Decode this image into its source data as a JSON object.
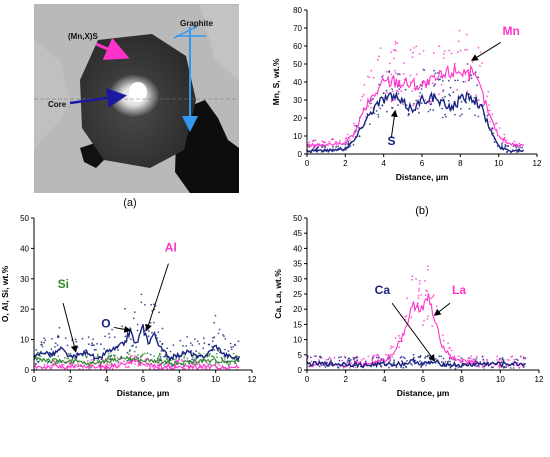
{
  "micrograph": {
    "panel_label": "(a)",
    "labels": {
      "graphite": "Graphite",
      "sulfide": "(Mn,X)S",
      "core": "Core"
    },
    "colors": {
      "sulfide_arrow": "#ff33cc",
      "core_arrow": "#1a1aa0",
      "line_arrow": "#3399ee"
    }
  },
  "chart_data": [
    {
      "id": "b",
      "type": "line",
      "panel_label": "(b)",
      "ylabel": "Mn, S, wt.%",
      "xlabel": "Distance, µm",
      "xlim": [
        0,
        12
      ],
      "ylim": [
        0,
        80
      ],
      "xticks": [
        0,
        2,
        4,
        6,
        8,
        10,
        12
      ],
      "yticks": [
        0,
        10,
        20,
        30,
        40,
        50,
        60,
        70,
        80
      ],
      "grid": false,
      "series": [
        {
          "name": "Mn",
          "color": "#ff33cc",
          "x": [
            0,
            1,
            2,
            2.5,
            3,
            3.5,
            4,
            4.5,
            5,
            5.5,
            6,
            6.5,
            7,
            7.5,
            8,
            8.5,
            9,
            9.5,
            10,
            10.5,
            11,
            11.3
          ],
          "y": [
            5,
            5,
            6,
            12,
            25,
            33,
            40,
            41,
            40,
            39,
            38,
            40,
            43,
            46,
            47,
            45,
            38,
            22,
            10,
            6,
            5,
            5
          ]
        },
        {
          "name": "S",
          "color": "#1a237e",
          "x": [
            0,
            1,
            2,
            2.5,
            3,
            3.5,
            4,
            4.5,
            5,
            5.5,
            6,
            6.5,
            7,
            7.5,
            8,
            8.5,
            9,
            9.5,
            10,
            10.5,
            11,
            11.3
          ],
          "y": [
            2,
            2,
            3,
            8,
            18,
            26,
            31,
            32,
            28,
            25,
            30,
            32,
            28,
            26,
            30,
            33,
            28,
            15,
            4,
            2,
            2,
            2
          ]
        }
      ],
      "annotations": [
        {
          "text": "Mn",
          "color": "#ff33cc",
          "x": 10.2,
          "y": 66
        },
        {
          "text": "S",
          "color": "#1a237e",
          "x": 4.2,
          "y": 5
        }
      ]
    },
    {
      "id": "c",
      "type": "line",
      "panel_label": "(c)",
      "ylabel": "O, Al, Si, wt.%",
      "xlabel": "Distance, µm",
      "xlim": [
        0,
        12
      ],
      "ylim": [
        0,
        50
      ],
      "xticks": [
        0,
        2,
        4,
        6,
        8,
        10,
        12
      ],
      "yticks": [
        0,
        10,
        20,
        30,
        40,
        50
      ],
      "grid": false,
      "series": [
        {
          "name": "Al",
          "color": "#ff33cc",
          "x": [
            0,
            1,
            2,
            3,
            4,
            4.5,
            5,
            5.5,
            6,
            6.5,
            7,
            8,
            9,
            10,
            11
          ],
          "y": [
            1,
            1,
            1,
            1,
            1,
            1.5,
            2,
            3,
            2,
            1.5,
            1,
            1,
            1,
            1,
            1
          ]
        },
        {
          "name": "Si",
          "color": "#2e8b2e",
          "x": [
            0,
            1,
            2,
            3,
            4,
            5,
            6,
            7,
            8,
            9,
            10,
            11
          ],
          "y": [
            4,
            3,
            3,
            2,
            3,
            4,
            3,
            3,
            2,
            3,
            3,
            3
          ]
        },
        {
          "name": "O",
          "color": "#1a237e",
          "x": [
            0,
            0.5,
            1,
            1.5,
            2,
            2.5,
            3,
            3.5,
            4,
            4.5,
            5,
            5.3,
            5.6,
            6,
            6.3,
            6.6,
            7,
            7.5,
            8,
            8.5,
            9,
            9.5,
            10,
            10.5,
            11
          ],
          "y": [
            4,
            6,
            5,
            7,
            4,
            5,
            6,
            3,
            6,
            7,
            9,
            13,
            8,
            14,
            9,
            12,
            7,
            4,
            5,
            6,
            4,
            5,
            8,
            5,
            4
          ]
        }
      ],
      "annotations": [
        {
          "text": "Al",
          "color": "#ff33cc",
          "x": 7.2,
          "y": 39
        },
        {
          "text": "Si",
          "color": "#2e8b2e",
          "x": 1.3,
          "y": 27
        },
        {
          "text": "O",
          "color": "#1a237e",
          "x": 3.7,
          "y": 14
        }
      ]
    },
    {
      "id": "d",
      "type": "line",
      "panel_label": "(d)",
      "ylabel": "Ca, La, wt.%",
      "xlabel": "Distance, µm",
      "xlim": [
        0,
        12
      ],
      "ylim": [
        0,
        50
      ],
      "xticks": [
        0,
        2,
        4,
        6,
        8,
        10,
        12
      ],
      "yticks": [
        0,
        5,
        10,
        15,
        20,
        25,
        30,
        35,
        40,
        45,
        50
      ],
      "grid": false,
      "series": [
        {
          "name": "La",
          "color": "#ff33cc",
          "x": [
            0,
            1,
            2,
            3,
            4,
            4.5,
            5,
            5.3,
            5.6,
            6,
            6.3,
            6.6,
            7,
            7.5,
            8,
            9,
            10,
            11,
            11.3
          ],
          "y": [
            2,
            2,
            2,
            2,
            3,
            6,
            12,
            18,
            22,
            20,
            24,
            16,
            8,
            4,
            3,
            2,
            2,
            2,
            2
          ]
        },
        {
          "name": "Ca",
          "color": "#1a237e",
          "x": [
            0,
            1,
            2,
            3,
            4,
            5,
            5.5,
            6,
            6.5,
            7,
            8,
            9,
            10,
            11
          ],
          "y": [
            2,
            2,
            2,
            1.5,
            2,
            2,
            3,
            2,
            2.5,
            2,
            1.5,
            2,
            2,
            2
          ]
        }
      ],
      "annotations": [
        {
          "text": "La",
          "color": "#ff33cc",
          "x": 7.5,
          "y": 25
        },
        {
          "text": "Ca",
          "color": "#1a237e",
          "x": 3.5,
          "y": 25
        }
      ]
    }
  ]
}
